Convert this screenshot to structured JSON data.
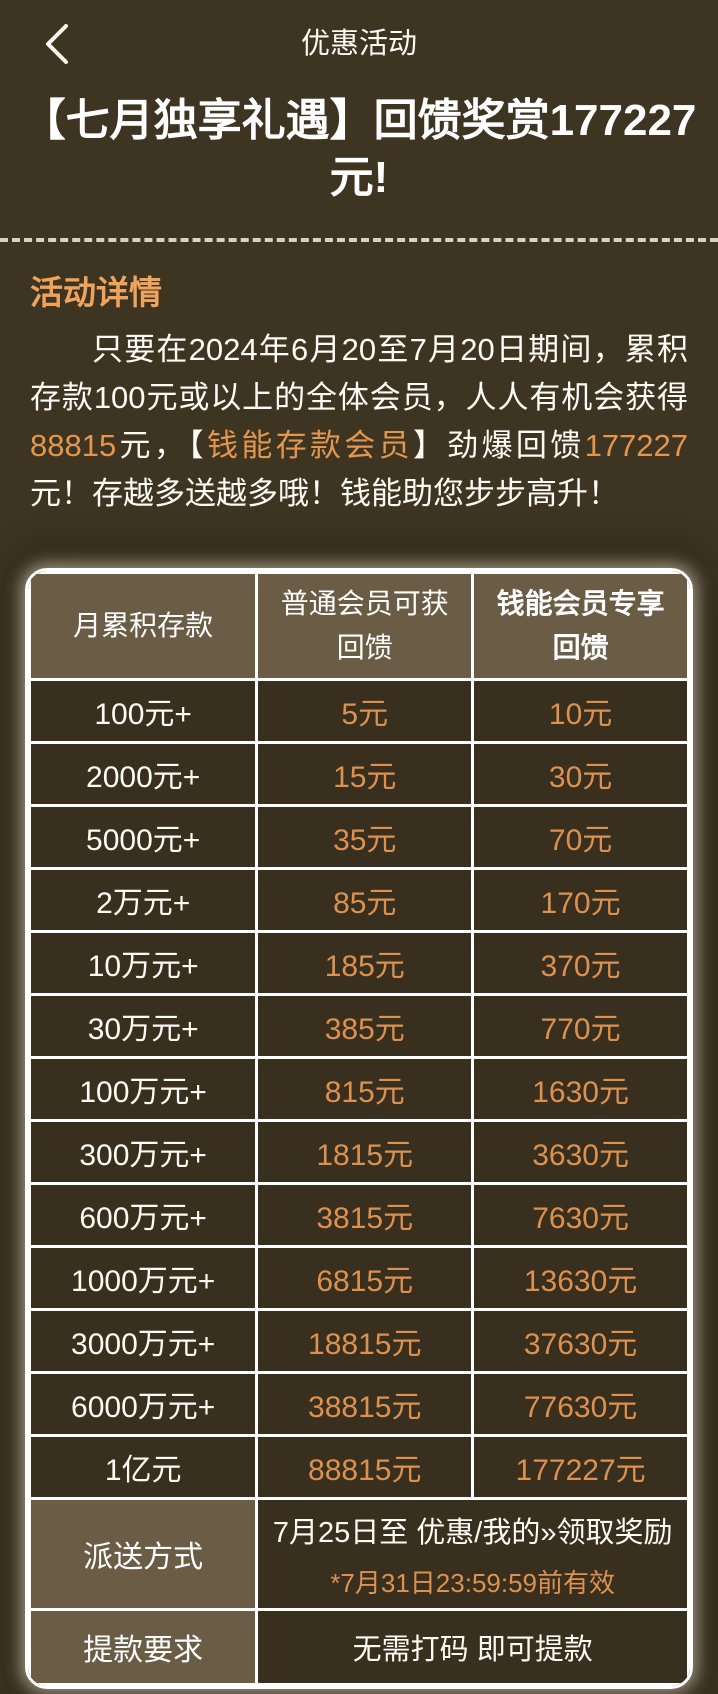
{
  "nav": {
    "title": "优惠活动",
    "back_icon": "chevron-left-icon"
  },
  "promo": {
    "title": "【七月独享礼遇】回馈奖赏177227元!",
    "section_title": "活动详情",
    "paragraph_segments": [
      {
        "text": "只要在2024年6月20至7月20日期间，累积存款100元或以上的全体会员，人人有机会获得",
        "highlight": false
      },
      {
        "text": "88815",
        "highlight": true
      },
      {
        "text": "元，【",
        "highlight": false
      },
      {
        "text": "钱能存款会员",
        "highlight": true
      },
      {
        "text": "】劲爆回馈",
        "highlight": false
      },
      {
        "text": "177227",
        "highlight": true
      },
      {
        "text": "元！存越多送越多哦！钱能助您步步高升！",
        "highlight": false
      }
    ]
  },
  "table": {
    "headers": [
      "月累积存款",
      "普通会员可获回馈",
      "钱能会员专享回馈"
    ],
    "rows": [
      [
        "100元+",
        "5元",
        "10元"
      ],
      [
        "2000元+",
        "15元",
        "30元"
      ],
      [
        "5000元+",
        "35元",
        "70元"
      ],
      [
        "2万元+",
        "85元",
        "170元"
      ],
      [
        "10万元+",
        "185元",
        "370元"
      ],
      [
        "30万元+",
        "385元",
        "770元"
      ],
      [
        "100万元+",
        "815元",
        "1630元"
      ],
      [
        "300万元+",
        "1815元",
        "3630元"
      ],
      [
        "600万元+",
        "3815元",
        "7630元"
      ],
      [
        "1000万元+",
        "6815元",
        "13630元"
      ],
      [
        "3000万元+",
        "18815元",
        "37630元"
      ],
      [
        "6000万元+",
        "38815元",
        "77630元"
      ],
      [
        "1亿元",
        "88815元",
        "177227元"
      ]
    ],
    "footer_rows": [
      {
        "label": "派送方式",
        "value": "7月25日至 优惠/我的»领取奖励",
        "note": "*7月31日23:59:59前有效"
      },
      {
        "label": "提款要求",
        "value": "无需打码 即可提款"
      }
    ]
  },
  "colors": {
    "page_background": "#3e3422",
    "cell_background": "#382f1e",
    "header_cell_background": "#6a5c45",
    "accent_orange": "#dd9150",
    "section_title_orange": "#efa45d",
    "text_white": "#fdfbf5",
    "border_white": "#ffffff",
    "dashed_divider": "#d9d2c4"
  }
}
